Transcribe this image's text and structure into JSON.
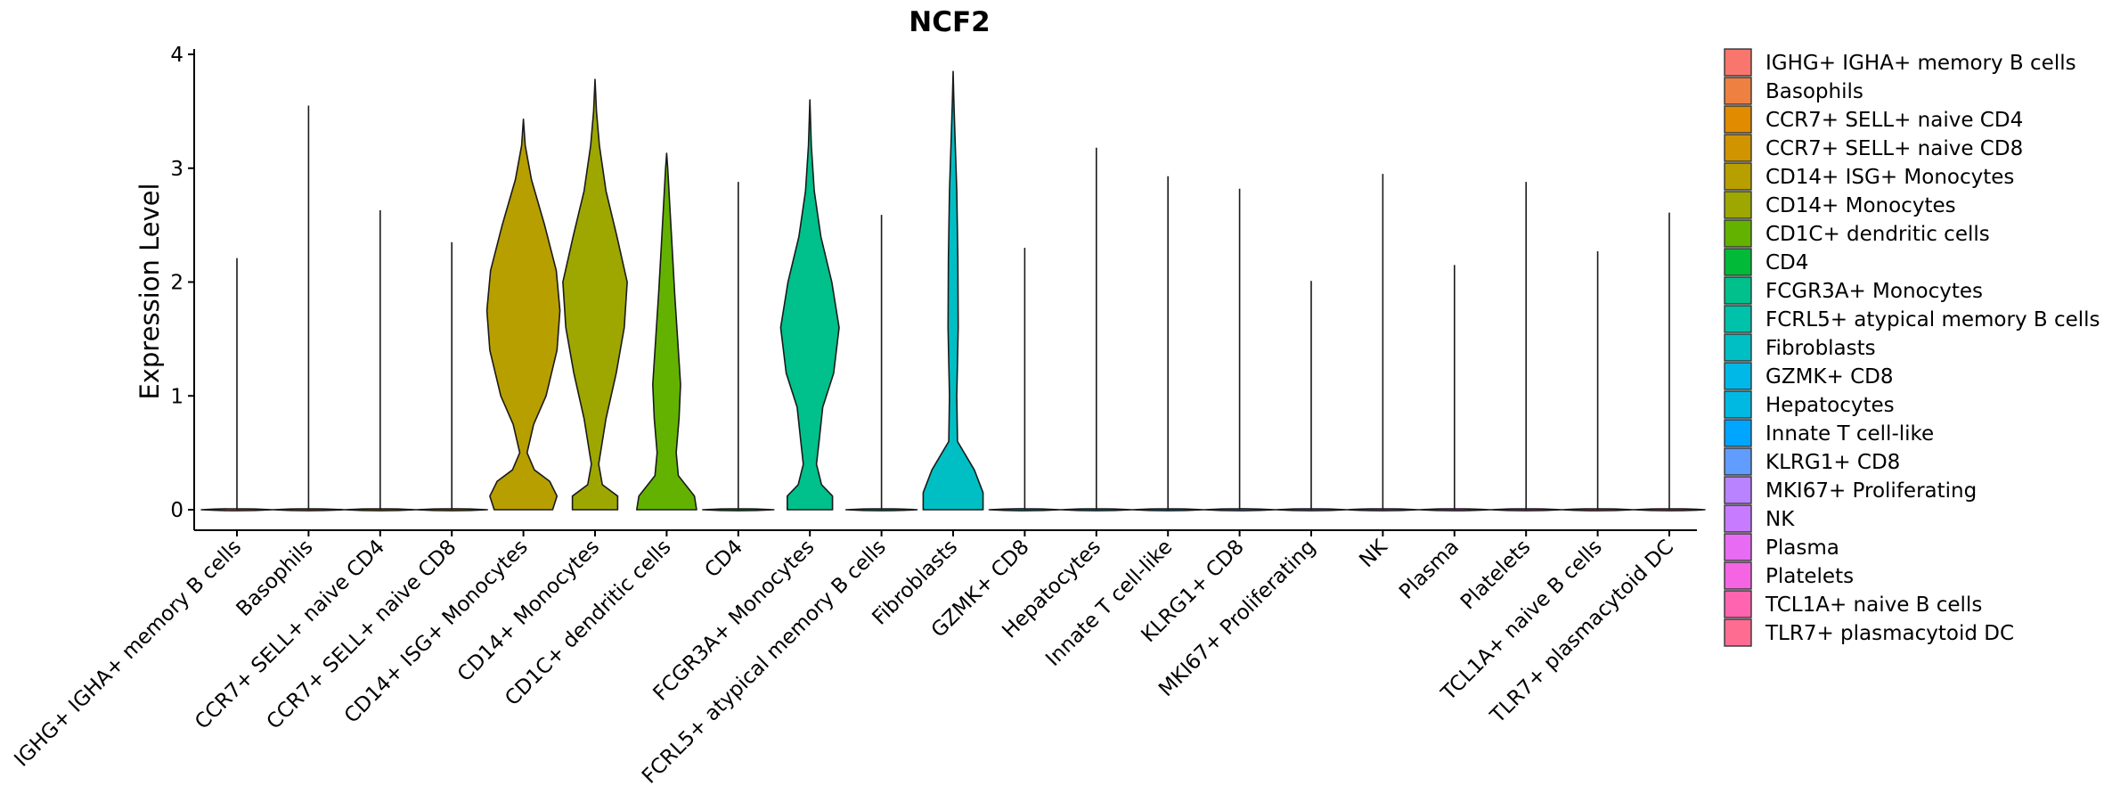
{
  "chart_data": {
    "type": "violin",
    "title": "NCF2",
    "xlabel": "",
    "ylabel": "Expression Level",
    "ylim": [
      -0.2,
      4.05
    ],
    "yticks": [
      0,
      1,
      2,
      3,
      4
    ],
    "legend_position": "right",
    "grid": false,
    "categories": [
      "IGHG+ IGHA+ memory B cells",
      "Basophils",
      "CCR7+ SELL+ naive CD4",
      "CCR7+ SELL+ naive CD8",
      "CD14+ ISG+ Monocytes",
      "CD14+ Monocytes",
      "CD1C+ dendritic cells",
      "CD4",
      "FCGR3A+ Monocytes",
      "FCRL5+ atypical memory B cells",
      "Fibroblasts",
      "GZMK+ CD8",
      "Hepatocytes",
      "Innate T cell-like",
      "KLRG1+ CD8",
      "MKI67+ Proliferating",
      "NK",
      "Plasma",
      "Platelets",
      "TCL1A+ naive B cells",
      "TLR7+ plasmacytoid DC"
    ],
    "legend_labels": [
      " IGHG+ IGHA+ memory B cells",
      "Basophils",
      "CCR7+ SELL+ naive CD4",
      "CCR7+ SELL+ naive CD8",
      "CD14+ ISG+ Monocytes",
      "CD14+ Monocytes",
      "CD1C+ dendritic cells",
      "CD4",
      "FCGR3A+ Monocytes",
      "FCRL5+ atypical memory B cells",
      "Fibroblasts",
      "GZMK+ CD8",
      "Hepatocytes",
      "Innate T cell-like",
      "KLRG1+ CD8",
      "MKI67+ Proliferating",
      "NK",
      "Plasma",
      "Platelets",
      "TCL1A+ naive B cells",
      "TLR7+ plasmacytoid DC"
    ],
    "colors": [
      "#F8766D",
      "#EE8042",
      "#E08B00",
      "#CF9400",
      "#B79F00",
      "#9DA700",
      "#64B200",
      "#00BA38",
      "#00C08B",
      "#00C1AA",
      "#00BFC4",
      "#00B8E7",
      "#00B9E3",
      "#00A5FF",
      "#619CFF",
      "#B983FF",
      "#C77CFF",
      "#E76BF3",
      "#F564E3",
      "#FF64B0",
      "#FF6C91"
    ],
    "max_values": [
      2.21,
      3.55,
      2.63,
      2.35,
      3.43,
      3.78,
      3.13,
      2.88,
      3.6,
      2.59,
      3.85,
      2.3,
      3.18,
      2.93,
      2.82,
      2.01,
      2.95,
      2.15,
      2.88,
      2.27,
      2.61
    ],
    "densities": [
      [],
      [],
      [],
      [],
      [
        [
          0,
          0.8
        ],
        [
          0.12,
          0.92
        ],
        [
          0.25,
          0.72
        ],
        [
          0.35,
          0.3
        ],
        [
          0.5,
          0.1
        ],
        [
          0.75,
          0.28
        ],
        [
          1.0,
          0.62
        ],
        [
          1.4,
          0.92
        ],
        [
          1.75,
          1.0
        ],
        [
          2.1,
          0.9
        ],
        [
          2.5,
          0.58
        ],
        [
          2.9,
          0.22
        ],
        [
          3.2,
          0.05
        ],
        [
          3.43,
          0.0
        ]
      ],
      [
        [
          0,
          0.62
        ],
        [
          0.12,
          0.62
        ],
        [
          0.22,
          0.2
        ],
        [
          0.4,
          0.1
        ],
        [
          0.8,
          0.3
        ],
        [
          1.2,
          0.58
        ],
        [
          1.6,
          0.8
        ],
        [
          2.0,
          0.88
        ],
        [
          2.4,
          0.6
        ],
        [
          2.8,
          0.3
        ],
        [
          3.2,
          0.12
        ],
        [
          3.5,
          0.04
        ],
        [
          3.78,
          0.0
        ]
      ],
      [
        [
          0,
          0.82
        ],
        [
          0.12,
          0.76
        ],
        [
          0.3,
          0.32
        ],
        [
          0.5,
          0.26
        ],
        [
          0.8,
          0.34
        ],
        [
          1.1,
          0.38
        ],
        [
          1.5,
          0.3
        ],
        [
          1.9,
          0.22
        ],
        [
          2.3,
          0.15
        ],
        [
          2.7,
          0.08
        ],
        [
          3.0,
          0.03
        ],
        [
          3.13,
          0.0
        ]
      ],
      [],
      [
        [
          0,
          0.62
        ],
        [
          0.12,
          0.62
        ],
        [
          0.22,
          0.32
        ],
        [
          0.4,
          0.18
        ],
        [
          0.6,
          0.25
        ],
        [
          0.9,
          0.35
        ],
        [
          1.2,
          0.65
        ],
        [
          1.6,
          0.8
        ],
        [
          2.0,
          0.6
        ],
        [
          2.4,
          0.3
        ],
        [
          2.8,
          0.12
        ],
        [
          3.2,
          0.04
        ],
        [
          3.6,
          0.0
        ]
      ],
      [],
      [
        [
          0,
          0.82
        ],
        [
          0.15,
          0.82
        ],
        [
          0.35,
          0.58
        ],
        [
          0.6,
          0.12
        ],
        [
          1.0,
          0.1
        ],
        [
          1.6,
          0.14
        ],
        [
          2.2,
          0.13
        ],
        [
          2.8,
          0.1
        ],
        [
          3.3,
          0.05
        ],
        [
          3.6,
          0.02
        ],
        [
          3.85,
          0.0
        ]
      ],
      [],
      [],
      [],
      [],
      [],
      [],
      [],
      [],
      [],
      []
    ]
  }
}
